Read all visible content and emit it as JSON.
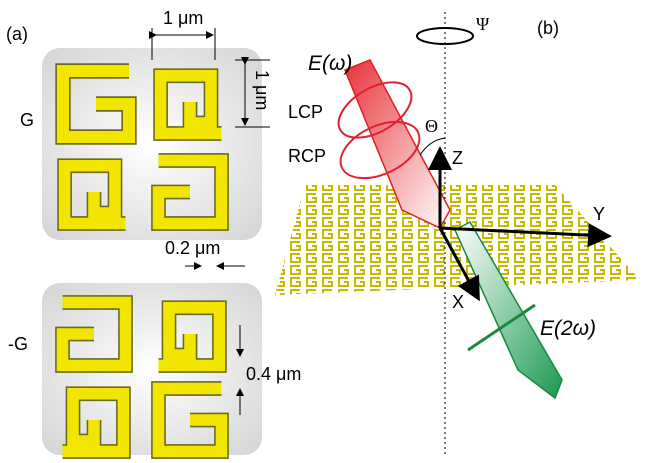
{
  "panel_a": {
    "label": "(a)",
    "width_label": "1 μm",
    "height_label": "1 μm",
    "top_sample": "G",
    "bottom_sample": "-G",
    "gap_label": "0.2 μm",
    "arm_label": "0.4 μm"
  },
  "panel_b": {
    "label": "(b)",
    "incident_field": "E(ω)",
    "lcp": "LCP",
    "rcp": "RCP",
    "theta": "Θ",
    "psi": "Ψ",
    "z_axis": "Z",
    "y_axis": "Y",
    "x_axis": "X",
    "sh_field": "E(2ω)"
  }
}
